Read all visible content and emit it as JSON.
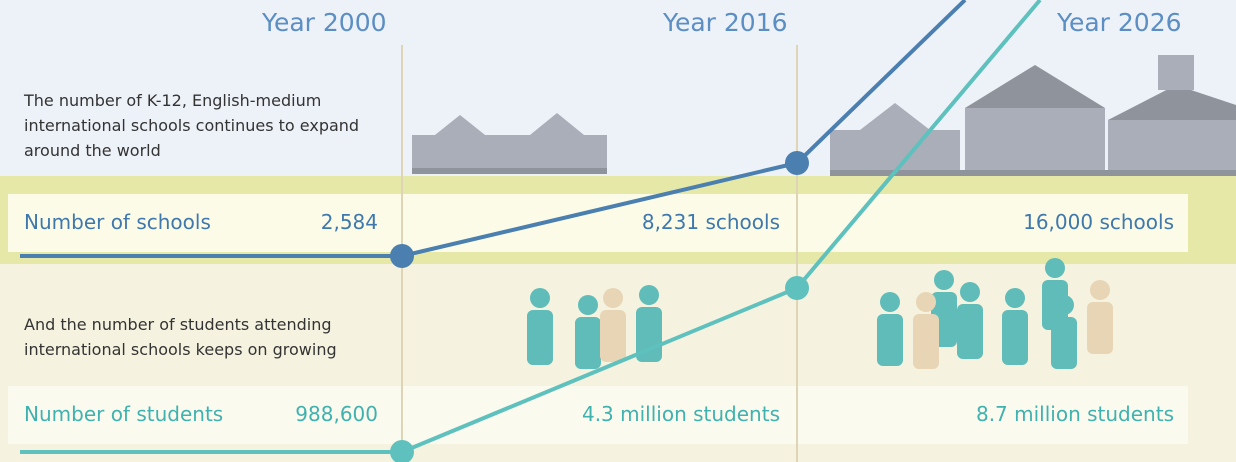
{
  "years": [
    "Year 2000",
    "Year 2016",
    "Year 2026"
  ],
  "schools": {
    "intro": "The number of K-12, English-medium international schools continues to expand around the world",
    "label": "Number of schools",
    "values": [
      "2,584",
      "8,231 schools",
      "16,000 schools"
    ]
  },
  "students": {
    "intro": "And the number of students attending international schools keeps on growing",
    "label": "Number of students",
    "values": [
      "988,600",
      "4.3 million students",
      "8.7 million students"
    ]
  }
}
